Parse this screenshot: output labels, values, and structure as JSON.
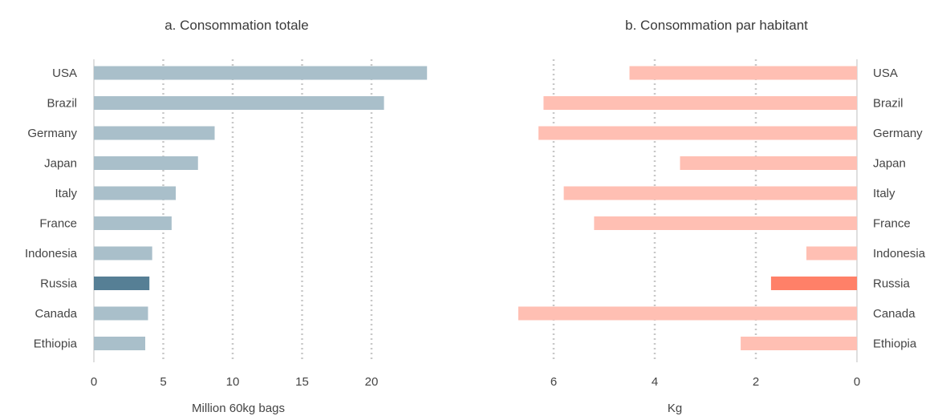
{
  "chart_data": [
    {
      "type": "bar",
      "orientation": "horizontal",
      "title": "a. Consommation totale",
      "xlabel": "Million 60kg bags",
      "categories": [
        "USA",
        "Brazil",
        "Germany",
        "Japan",
        "Italy",
        "France",
        "Indonesia",
        "Russia",
        "Canada",
        "Ethiopia"
      ],
      "values": [
        24.0,
        20.9,
        8.7,
        7.5,
        5.9,
        5.6,
        4.2,
        4.0,
        3.9,
        3.7
      ],
      "xlim": [
        0,
        24
      ],
      "xticks": [
        0,
        5,
        10,
        15,
        20
      ],
      "grid": true,
      "highlight": "Russia",
      "colors": {
        "bar": "#a9bfca",
        "highlight": "#567f95"
      }
    },
    {
      "type": "bar",
      "orientation": "horizontal",
      "title": "b. Consommation par habitant",
      "xlabel": "Kg",
      "categories": [
        "USA",
        "Brazil",
        "Germany",
        "Japan",
        "Italy",
        "France",
        "Indonesia",
        "Russia",
        "Canada",
        "Ethiopia"
      ],
      "values": [
        4.5,
        6.2,
        6.3,
        3.5,
        5.8,
        5.2,
        1.0,
        1.7,
        6.7,
        2.3
      ],
      "xlim": [
        7,
        0
      ],
      "xticks": [
        6,
        4,
        2,
        0
      ],
      "reversed_axis": true,
      "grid": true,
      "highlight": "Russia",
      "colors": {
        "bar": "#ffbfb3",
        "highlight": "#ff8068"
      }
    }
  ]
}
